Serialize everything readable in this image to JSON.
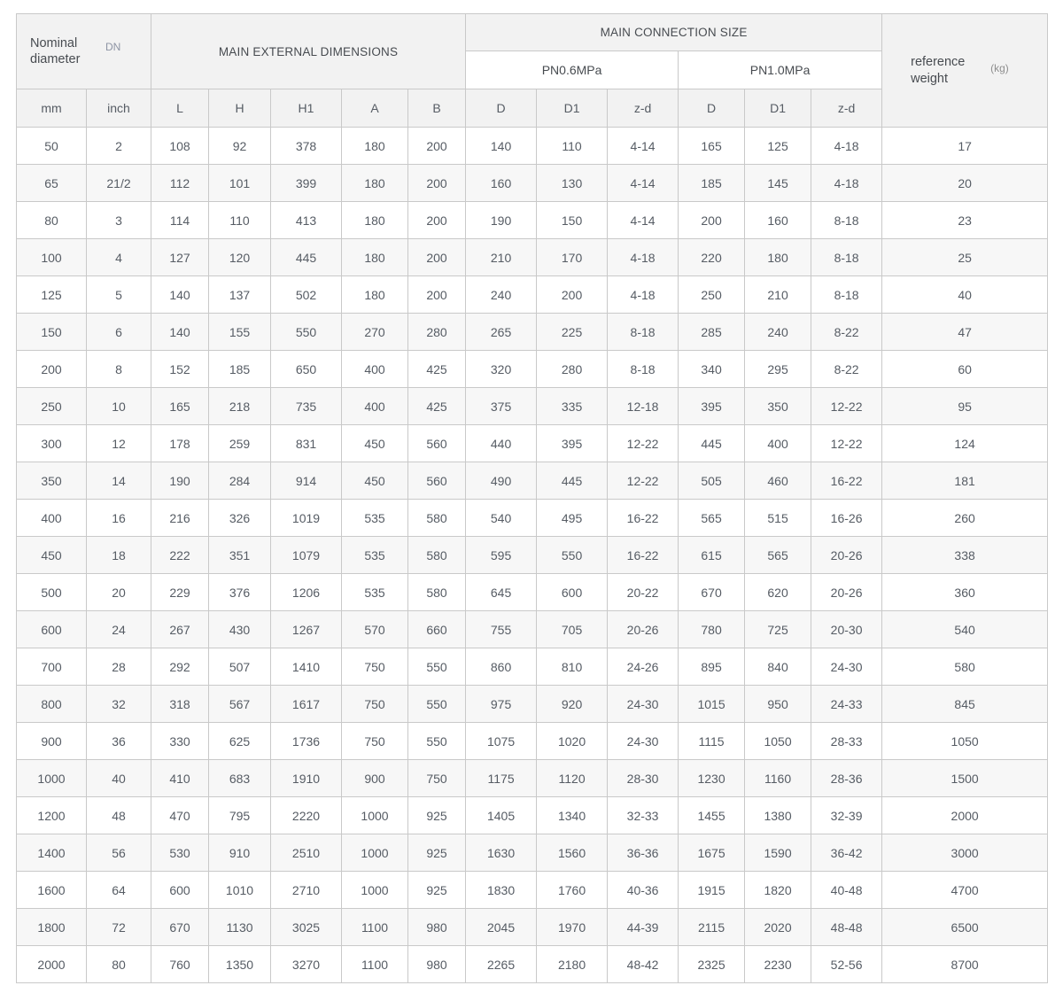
{
  "table": {
    "header": {
      "nominal_diameter": "Nominal diameter",
      "dn_label": "DN",
      "main_external": "MAIN EXTERNAL DIMENSIONS",
      "main_connection": "MAIN CONNECTION SIZE",
      "pn06_label": "PN0.6MPa",
      "pn10_label": "PN1.0MPa",
      "reference_weight": "reference weight",
      "kg_label": "(kg)",
      "columns": [
        "mm",
        "inch",
        "L",
        "H",
        "H1",
        "A",
        "B",
        "D",
        "D1",
        "z-d",
        "D",
        "D1",
        "z-d"
      ]
    },
    "rows": [
      [
        "50",
        "2",
        "108",
        "92",
        "378",
        "180",
        "200",
        "140",
        "110",
        "4-14",
        "165",
        "125",
        "4-18",
        "17"
      ],
      [
        "65",
        "21/2",
        "112",
        "101",
        "399",
        "180",
        "200",
        "160",
        "130",
        "4-14",
        "185",
        "145",
        "4-18",
        "20"
      ],
      [
        "80",
        "3",
        "114",
        "110",
        "413",
        "180",
        "200",
        "190",
        "150",
        "4-14",
        "200",
        "160",
        "8-18",
        "23"
      ],
      [
        "100",
        "4",
        "127",
        "120",
        "445",
        "180",
        "200",
        "210",
        "170",
        "4-18",
        "220",
        "180",
        "8-18",
        "25"
      ],
      [
        "125",
        "5",
        "140",
        "137",
        "502",
        "180",
        "200",
        "240",
        "200",
        "4-18",
        "250",
        "210",
        "8-18",
        "40"
      ],
      [
        "150",
        "6",
        "140",
        "155",
        "550",
        "270",
        "280",
        "265",
        "225",
        "8-18",
        "285",
        "240",
        "8-22",
        "47"
      ],
      [
        "200",
        "8",
        "152",
        "185",
        "650",
        "400",
        "425",
        "320",
        "280",
        "8-18",
        "340",
        "295",
        "8-22",
        "60"
      ],
      [
        "250",
        "10",
        "165",
        "218",
        "735",
        "400",
        "425",
        "375",
        "335",
        "12-18",
        "395",
        "350",
        "12-22",
        "95"
      ],
      [
        "300",
        "12",
        "178",
        "259",
        "831",
        "450",
        "560",
        "440",
        "395",
        "12-22",
        "445",
        "400",
        "12-22",
        "124"
      ],
      [
        "350",
        "14",
        "190",
        "284",
        "914",
        "450",
        "560",
        "490",
        "445",
        "12-22",
        "505",
        "460",
        "16-22",
        "181"
      ],
      [
        "400",
        "16",
        "216",
        "326",
        "1019",
        "535",
        "580",
        "540",
        "495",
        "16-22",
        "565",
        "515",
        "16-26",
        "260"
      ],
      [
        "450",
        "18",
        "222",
        "351",
        "1079",
        "535",
        "580",
        "595",
        "550",
        "16-22",
        "615",
        "565",
        "20-26",
        "338"
      ],
      [
        "500",
        "20",
        "229",
        "376",
        "1206",
        "535",
        "580",
        "645",
        "600",
        "20-22",
        "670",
        "620",
        "20-26",
        "360"
      ],
      [
        "600",
        "24",
        "267",
        "430",
        "1267",
        "570",
        "660",
        "755",
        "705",
        "20-26",
        "780",
        "725",
        "20-30",
        "540"
      ],
      [
        "700",
        "28",
        "292",
        "507",
        "1410",
        "750",
        "550",
        "860",
        "810",
        "24-26",
        "895",
        "840",
        "24-30",
        "580"
      ],
      [
        "800",
        "32",
        "318",
        "567",
        "1617",
        "750",
        "550",
        "975",
        "920",
        "24-30",
        "1015",
        "950",
        "24-33",
        "845"
      ],
      [
        "900",
        "36",
        "330",
        "625",
        "1736",
        "750",
        "550",
        "1075",
        "1020",
        "24-30",
        "1115",
        "1050",
        "28-33",
        "1050"
      ],
      [
        "1000",
        "40",
        "410",
        "683",
        "1910",
        "900",
        "750",
        "1175",
        "1120",
        "28-30",
        "1230",
        "1160",
        "28-36",
        "1500"
      ],
      [
        "1200",
        "48",
        "470",
        "795",
        "2220",
        "1000",
        "925",
        "1405",
        "1340",
        "32-33",
        "1455",
        "1380",
        "32-39",
        "2000"
      ],
      [
        "1400",
        "56",
        "530",
        "910",
        "2510",
        "1000",
        "925",
        "1630",
        "1560",
        "36-36",
        "1675",
        "1590",
        "36-42",
        "3000"
      ],
      [
        "1600",
        "64",
        "600",
        "1010",
        "2710",
        "1000",
        "925",
        "1830",
        "1760",
        "40-36",
        "1915",
        "1820",
        "40-48",
        "4700"
      ],
      [
        "1800",
        "72",
        "670",
        "1130",
        "3025",
        "1100",
        "980",
        "2045",
        "1970",
        "44-39",
        "2115",
        "2020",
        "48-48",
        "6500"
      ],
      [
        "2000",
        "80",
        "760",
        "1350",
        "3270",
        "1100",
        "980",
        "2265",
        "2180",
        "48-42",
        "2325",
        "2230",
        "52-56",
        "8700"
      ]
    ]
  },
  "colors": {
    "border": "#c9c9c9",
    "header_bg": "#f2f2f2",
    "row_alt_bg": "#f7f7f7",
    "text": "#565c64",
    "dn_muted": "#8d94a4"
  }
}
